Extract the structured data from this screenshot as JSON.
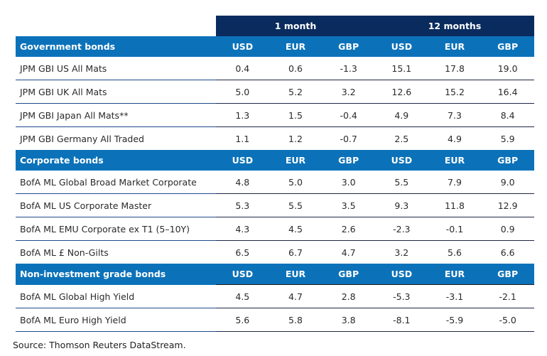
{
  "header": {
    "groups": [
      "1 month",
      "12 months"
    ],
    "currencies": [
      "USD",
      "EUR",
      "GBP",
      "USD",
      "EUR",
      "GBP"
    ]
  },
  "sections": [
    {
      "title": "Government bonds",
      "rows": [
        {
          "name": "JPM GBI US All Mats",
          "values": [
            "0.4",
            "0.6",
            "-1.3",
            "15.1",
            "17.8",
            "19.0"
          ]
        },
        {
          "name": "JPM GBI UK All Mats",
          "values": [
            "5.0",
            "5.2",
            "3.2",
            "12.6",
            "15.2",
            "16.4"
          ]
        },
        {
          "name": "JPM GBI Japan All Mats**",
          "values": [
            "1.3",
            "1.5",
            "-0.4",
            "4.9",
            "7.3",
            "8.4"
          ]
        },
        {
          "name": "JPM GBI Germany All Traded",
          "values": [
            "1.1",
            "1.2",
            "-0.7",
            "2.5",
            "4.9",
            "5.9"
          ]
        }
      ]
    },
    {
      "title": "Corporate bonds",
      "rows": [
        {
          "name": "BofA ML Global Broad Market Corporate",
          "values": [
            "4.8",
            "5.0",
            "3.0",
            "5.5",
            "7.9",
            "9.0"
          ]
        },
        {
          "name": "BofA ML US Corporate Master",
          "values": [
            "5.3",
            "5.5",
            "3.5",
            "9.3",
            "11.8",
            "12.9"
          ]
        },
        {
          "name": "BofA ML EMU Corporate ex T1 (5–10Y)",
          "values": [
            "4.3",
            "4.5",
            "2.6",
            "-2.3",
            "-0.1",
            "0.9"
          ]
        },
        {
          "name": "BofA ML £ Non-Gilts",
          "values": [
            "6.5",
            "6.7",
            "4.7",
            "3.2",
            "5.6",
            "6.6"
          ]
        }
      ]
    },
    {
      "title": "Non-investment grade bonds",
      "rows": [
        {
          "name": "BofA ML Global High Yield",
          "values": [
            "4.5",
            "4.7",
            "2.8",
            "-5.3",
            "-3.1",
            "-2.1"
          ]
        },
        {
          "name": "BofA ML Euro High Yield",
          "values": [
            "5.6",
            "5.8",
            "3.8",
            "-8.1",
            "-5.9",
            "-5.0"
          ]
        }
      ]
    }
  ],
  "source": "Source: Thomson Reuters DataStream.",
  "colors": {
    "period_header": "#0a2b5e",
    "section_header": "#0b72b9",
    "header_text": "#ffffff"
  }
}
